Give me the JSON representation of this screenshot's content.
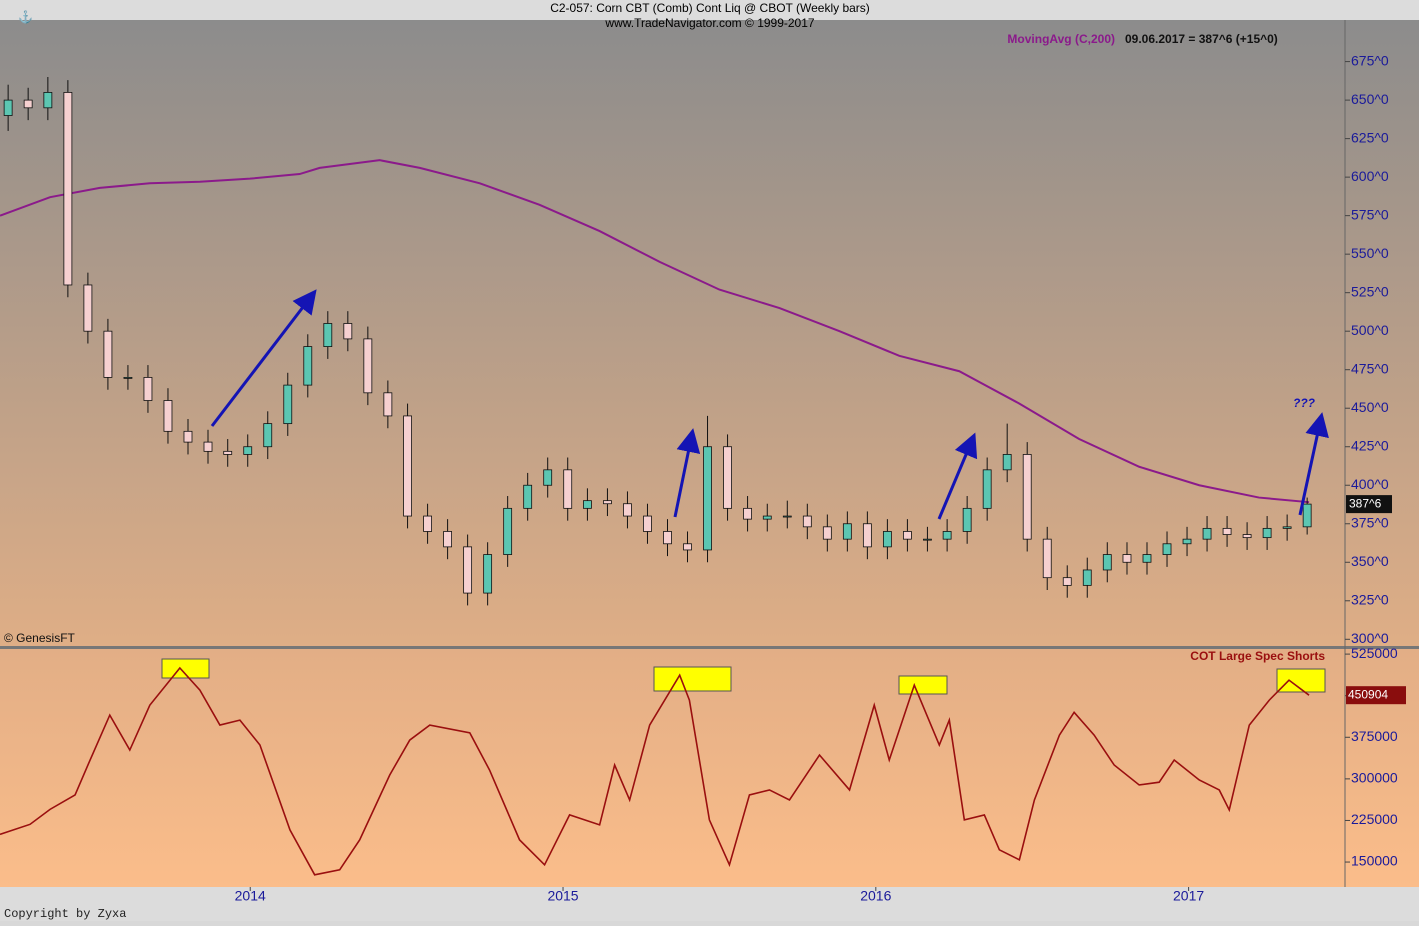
{
  "chart_data": [
    {
      "type": "candlestick",
      "title": "C2-057:  Corn CBT (Comb) Cont Liq @ CBOT  (Weekly bars)",
      "subtitle": "www.TradeNavigator.com © 1999-2017",
      "legend_text": "09.06.2017 = 387^6 (+15^0)",
      "last_label": "387^6",
      "annotation": "???",
      "source": "© GenesisFT",
      "footer": "Copyright by Zyxa",
      "up_color": "#5cc6b2",
      "down_color": "#f6d0d0",
      "x": [
        2013.226,
        2013.29,
        2013.353,
        2013.417,
        2013.481,
        2013.545,
        2013.609,
        2013.673,
        2013.737,
        2013.801,
        2013.865,
        2013.928,
        2013.992,
        2014.056,
        2014.12,
        2014.184,
        2014.248,
        2014.312,
        2014.376,
        2014.44,
        2014.503,
        2014.567,
        2014.631,
        2014.695,
        2014.759,
        2014.823,
        2014.887,
        2014.951,
        2015.015,
        2015.078,
        2015.142,
        2015.206,
        2015.27,
        2015.334,
        2015.398,
        2015.462,
        2015.526,
        2015.59,
        2015.653,
        2015.717,
        2015.781,
        2015.845,
        2015.909,
        2015.973,
        2016.037,
        2016.101,
        2016.165,
        2016.228,
        2016.292,
        2016.356,
        2016.42,
        2016.484,
        2016.548,
        2016.612,
        2016.676,
        2016.74,
        2016.803,
        2016.867,
        2016.931,
        2016.995,
        2017.059,
        2017.123,
        2017.187,
        2017.251,
        2017.315,
        2017.379
      ],
      "open": [
        640,
        650,
        645,
        655,
        530,
        500,
        470,
        470,
        455,
        435,
        428,
        422,
        420,
        425,
        440,
        465,
        490,
        505,
        495,
        460,
        445,
        380,
        370,
        360,
        330,
        355,
        385,
        400,
        410,
        385,
        390,
        388,
        380,
        370,
        362,
        358,
        425,
        385,
        378,
        380,
        380,
        373,
        365,
        375,
        360,
        370,
        365,
        365,
        370,
        385,
        410,
        420,
        365,
        340,
        335,
        345,
        355,
        350,
        355,
        362,
        365,
        372,
        368,
        366,
        372,
        373
      ],
      "high": [
        660,
        658,
        665,
        663,
        538,
        508,
        478,
        478,
        463,
        443,
        436,
        430,
        433,
        448,
        473,
        498,
        513,
        513,
        503,
        468,
        453,
        388,
        378,
        368,
        363,
        393,
        408,
        418,
        418,
        398,
        398,
        396,
        388,
        378,
        370,
        445,
        433,
        393,
        388,
        390,
        388,
        381,
        383,
        383,
        378,
        378,
        373,
        378,
        393,
        418,
        440,
        428,
        373,
        348,
        353,
        363,
        363,
        363,
        370,
        373,
        380,
        380,
        376,
        380,
        381,
        392
      ],
      "low": [
        630,
        637,
        637,
        522,
        492,
        462,
        462,
        447,
        427,
        420,
        414,
        412,
        412,
        417,
        432,
        457,
        482,
        487,
        452,
        437,
        372,
        362,
        352,
        322,
        322,
        347,
        377,
        392,
        377,
        377,
        380,
        372,
        362,
        354,
        350,
        350,
        377,
        370,
        370,
        372,
        365,
        357,
        357,
        352,
        352,
        357,
        357,
        357,
        362,
        377,
        402,
        357,
        332,
        327,
        327,
        337,
        342,
        342,
        347,
        354,
        357,
        360,
        358,
        358,
        364,
        368
      ],
      "close": [
        650,
        645,
        655,
        530,
        500,
        470,
        470,
        455,
        435,
        428,
        422,
        420,
        425,
        440,
        465,
        490,
        505,
        495,
        460,
        445,
        380,
        370,
        360,
        330,
        355,
        385,
        400,
        410,
        385,
        390,
        388,
        380,
        370,
        362,
        358,
        425,
        385,
        378,
        380,
        380,
        373,
        365,
        375,
        360,
        370,
        365,
        365,
        370,
        385,
        410,
        420,
        365,
        340,
        335,
        345,
        355,
        350,
        355,
        362,
        365,
        372,
        368,
        366,
        372,
        373,
        387.75
      ],
      "moving_average": {
        "name": "MovingAvg (C,200)",
        "color": "#8b1a8b",
        "x": [
          2013.2,
          2013.36,
          2013.519,
          2013.679,
          2013.839,
          2013.999,
          2014.158,
          2014.222,
          2014.414,
          2014.542,
          2014.734,
          2014.925,
          2015.117,
          2015.309,
          2015.5,
          2015.692,
          2015.884,
          2016.075,
          2016.267,
          2016.459,
          2016.65,
          2016.842,
          2017.034,
          2017.225,
          2017.385
        ],
        "values": [
          575,
          587,
          593,
          596,
          597,
          599,
          602,
          606,
          611,
          606,
          596,
          582,
          565,
          545,
          527,
          515,
          500,
          484,
          474,
          453,
          430,
          412,
          400,
          392,
          389
        ]
      },
      "xlim": [
        2013.2,
        2017.5
      ],
      "ylim": [
        295,
        702
      ],
      "yticks": [
        {
          "value": 300,
          "label": "300^0"
        },
        {
          "value": 325,
          "label": "325^0"
        },
        {
          "value": 350,
          "label": "350^0"
        },
        {
          "value": 375,
          "label": "375^0"
        },
        {
          "value": 400,
          "label": "400^0"
        },
        {
          "value": 425,
          "label": "425^0"
        },
        {
          "value": 450,
          "label": "450^0"
        },
        {
          "value": 475,
          "label": "475^0"
        },
        {
          "value": 500,
          "label": "500^0"
        },
        {
          "value": 525,
          "label": "525^0"
        },
        {
          "value": 550,
          "label": "550^0"
        },
        {
          "value": 575,
          "label": "575^0"
        },
        {
          "value": 600,
          "label": "600^0"
        },
        {
          "value": 625,
          "label": "625^0"
        },
        {
          "value": 650,
          "label": "650^0"
        },
        {
          "value": 675,
          "label": "675^0"
        }
      ]
    },
    {
      "type": "line",
      "series": [
        {
          "name": "COT Large Spec Shorts",
          "color": "#9a0f0f",
          "x": [
            2013.2,
            2013.296,
            2013.36,
            2013.44,
            2013.488,
            2013.551,
            2013.615,
            2013.679,
            2013.775,
            2013.839,
            2013.903,
            2013.967,
            2014.031,
            2014.127,
            2014.206,
            2014.286,
            2014.35,
            2014.446,
            2014.51,
            2014.574,
            2014.702,
            2014.765,
            2014.861,
            2014.941,
            2015.021,
            2015.117,
            2015.165,
            2015.213,
            2015.277,
            2015.373,
            2015.404,
            2015.468,
            2015.532,
            2015.596,
            2015.66,
            2015.724,
            2015.82,
            2015.916,
            2015.995,
            2016.043,
            2016.123,
            2016.203,
            2016.235,
            2016.283,
            2016.347,
            2016.395,
            2016.459,
            2016.507,
            2016.587,
            2016.634,
            2016.698,
            2016.762,
            2016.842,
            2016.906,
            2016.954,
            2017.034,
            2017.098,
            2017.13,
            2017.194,
            2017.258,
            2017.321,
            2017.385
          ],
          "values": [
            200000,
            218000,
            245000,
            271000,
            334000,
            415000,
            352000,
            433000,
            500000,
            460000,
            397000,
            406000,
            361000,
            208000,
            127000,
            136000,
            190000,
            307000,
            370000,
            397000,
            383000,
            316000,
            190000,
            145000,
            235000,
            217000,
            325000,
            262000,
            397000,
            487000,
            442000,
            226000,
            145000,
            271000,
            280000,
            262000,
            343000,
            280000,
            433000,
            334000,
            469000,
            361000,
            406000,
            226000,
            235000,
            172000,
            154000,
            262000,
            379000,
            420000,
            379000,
            325000,
            289000,
            294000,
            334000,
            298000,
            280000,
            244000,
            397000,
            442000,
            478000,
            450904
          ]
        }
      ],
      "xlim": [
        2013.2,
        2017.5
      ],
      "ylim": [
        105000,
        536000
      ],
      "xticks": [
        2014,
        2015,
        2016,
        2017
      ],
      "yticks": [
        150000,
        225000,
        300000,
        375000,
        450000,
        525000
      ]
    }
  ]
}
